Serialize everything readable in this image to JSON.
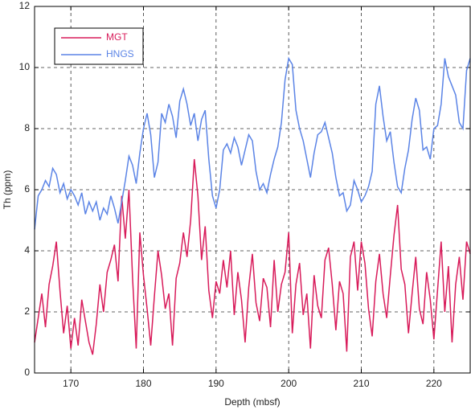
{
  "chart_data": {
    "type": "line",
    "x_label": "Depth (mbsf)",
    "y_label": "Th (ppm)",
    "x": [
      165,
      165.5,
      166,
      166.5,
      167,
      167.5,
      168,
      168.5,
      169,
      169.5,
      170,
      170.5,
      171,
      171.5,
      172,
      172.5,
      173,
      173.5,
      174,
      174.5,
      175,
      175.5,
      176,
      176.5,
      177,
      177.5,
      178,
      178.5,
      179,
      179.5,
      180,
      180.5,
      181,
      181.5,
      182,
      182.5,
      183,
      183.5,
      184,
      184.5,
      185,
      185.5,
      186,
      186.5,
      187,
      187.5,
      188,
      188.5,
      189,
      189.5,
      190,
      190.5,
      191,
      191.5,
      192,
      192.5,
      193,
      193.5,
      194,
      194.5,
      195,
      195.5,
      196,
      196.5,
      197,
      197.5,
      198,
      198.5,
      199,
      199.5,
      200,
      200.5,
      201,
      201.5,
      202,
      202.5,
      203,
      203.5,
      204,
      204.5,
      205,
      205.5,
      206,
      206.5,
      207,
      207.5,
      208,
      208.5,
      209,
      209.5,
      210,
      210.5,
      211,
      211.5,
      212,
      212.5,
      213,
      213.5,
      214,
      214.5,
      215,
      215.5,
      216,
      216.5,
      217,
      217.5,
      218,
      218.5,
      219,
      219.5,
      220,
      220.5,
      221,
      221.5,
      222,
      222.5,
      223,
      223.5,
      224,
      224.5,
      225
    ],
    "series": [
      {
        "name": "MGT",
        "color": "#d81b5a",
        "values": [
          1.0,
          1.8,
          2.6,
          1.5,
          2.9,
          3.5,
          4.3,
          2.7,
          1.3,
          2.2,
          0.8,
          1.8,
          0.9,
          2.4,
          1.7,
          1.0,
          0.6,
          1.6,
          2.9,
          2.0,
          3.3,
          3.7,
          4.2,
          3.0,
          5.8,
          4.4,
          6.0,
          3.1,
          0.8,
          4.6,
          3.2,
          2.1,
          0.9,
          2.5,
          4.0,
          3.2,
          2.1,
          2.6,
          0.9,
          3.1,
          3.6,
          4.6,
          3.8,
          5.0,
          7.0,
          5.8,
          3.7,
          4.8,
          2.7,
          1.8,
          3.0,
          2.6,
          3.7,
          2.8,
          4.0,
          1.9,
          3.3,
          2.4,
          1.0,
          2.8,
          3.9,
          2.3,
          1.7,
          3.1,
          2.8,
          1.5,
          3.7,
          2.0,
          2.9,
          3.3,
          4.6,
          1.3,
          2.9,
          3.6,
          1.9,
          2.6,
          0.8,
          3.2,
          2.2,
          1.8,
          3.7,
          4.1,
          2.9,
          1.4,
          3.0,
          2.6,
          0.7,
          3.8,
          4.3,
          2.7,
          4.3,
          3.6,
          2.1,
          1.2,
          3.0,
          3.9,
          2.6,
          1.8,
          3.2,
          4.5,
          5.5,
          3.4,
          2.9,
          1.3,
          2.6,
          3.8,
          2.1,
          1.6,
          3.3,
          2.4,
          1.1,
          2.7,
          4.3,
          2.0,
          3.5,
          1.0,
          2.9,
          3.8,
          2.4,
          4.3,
          3.9
        ]
      },
      {
        "name": "HNGS",
        "color": "#5b84e6",
        "values": [
          4.7,
          5.8,
          6.0,
          6.3,
          6.1,
          6.7,
          6.5,
          5.9,
          6.2,
          5.7,
          6.0,
          5.8,
          5.5,
          5.9,
          5.2,
          5.6,
          5.3,
          5.6,
          5.0,
          5.4,
          5.2,
          5.8,
          5.4,
          4.9,
          5.6,
          6.3,
          7.1,
          6.8,
          6.2,
          7.2,
          8.0,
          8.5,
          7.8,
          6.4,
          6.9,
          8.5,
          8.2,
          8.8,
          8.4,
          7.7,
          8.9,
          9.3,
          8.8,
          8.1,
          8.5,
          7.6,
          8.3,
          8.6,
          7.0,
          5.8,
          5.4,
          6.0,
          7.3,
          7.5,
          7.2,
          7.7,
          7.4,
          6.8,
          7.3,
          7.8,
          7.6,
          6.6,
          6.0,
          6.2,
          5.9,
          6.5,
          7.0,
          7.4,
          8.2,
          9.6,
          10.3,
          10.1,
          8.6,
          8.0,
          7.6,
          7.0,
          6.4,
          7.2,
          7.8,
          7.9,
          8.2,
          7.7,
          7.2,
          6.4,
          5.8,
          5.9,
          5.3,
          5.5,
          6.3,
          6.0,
          5.6,
          5.8,
          6.1,
          6.6,
          8.8,
          9.4,
          8.4,
          7.6,
          7.9,
          6.9,
          6.1,
          5.9,
          6.7,
          7.3,
          8.3,
          9.0,
          8.6,
          7.3,
          7.4,
          7.0,
          8.0,
          8.1,
          8.8,
          10.3,
          9.7,
          9.4,
          9.1,
          8.2,
          8.0,
          9.9,
          10.3
        ]
      }
    ],
    "xlim": [
      165,
      225
    ],
    "xticks": [
      170,
      180,
      190,
      200,
      210,
      220
    ],
    "ylim": [
      0,
      12
    ],
    "yticks": [
      0,
      2,
      4,
      6,
      8,
      10,
      12
    ],
    "grid": true,
    "legend": "upper left"
  }
}
